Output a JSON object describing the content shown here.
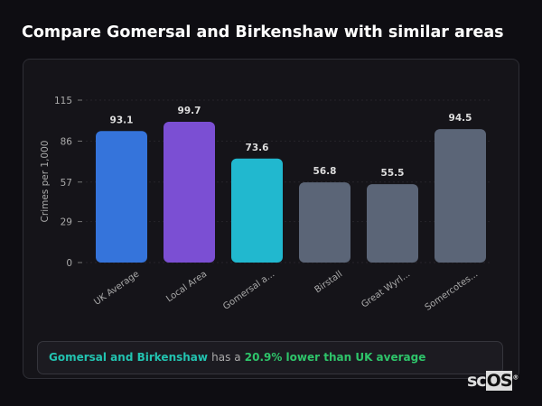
{
  "title": "Compare Gomersal and Birkenshaw with similar areas",
  "chart_data": {
    "type": "bar",
    "categories": [
      "UK Average",
      "Local Area",
      "Gomersal a...",
      "Birstall",
      "Great Wyrl...",
      "Somercotes..."
    ],
    "values": [
      93.1,
      99.7,
      73.6,
      56.8,
      55.5,
      94.5
    ],
    "value_labels": [
      "93.1",
      "99.7",
      "73.6",
      "56.8",
      "55.5",
      "94.5"
    ],
    "colors": [
      "#3574db",
      "#7b4fd3",
      "#21b8cf",
      "#5b6577",
      "#5b6577",
      "#5b6577"
    ],
    "ylabel": "Crimes per 1,000",
    "ylim": [
      0,
      115
    ],
    "yticks": [
      0,
      29,
      57,
      86,
      115
    ],
    "grid": true
  },
  "summary": {
    "area": "Gomersal and Birkenshaw",
    "middle": "has a",
    "comparison": "20.9% lower than UK average"
  },
  "logo": {
    "text_a": "sc",
    "text_b": "OS",
    "mark": "®"
  }
}
